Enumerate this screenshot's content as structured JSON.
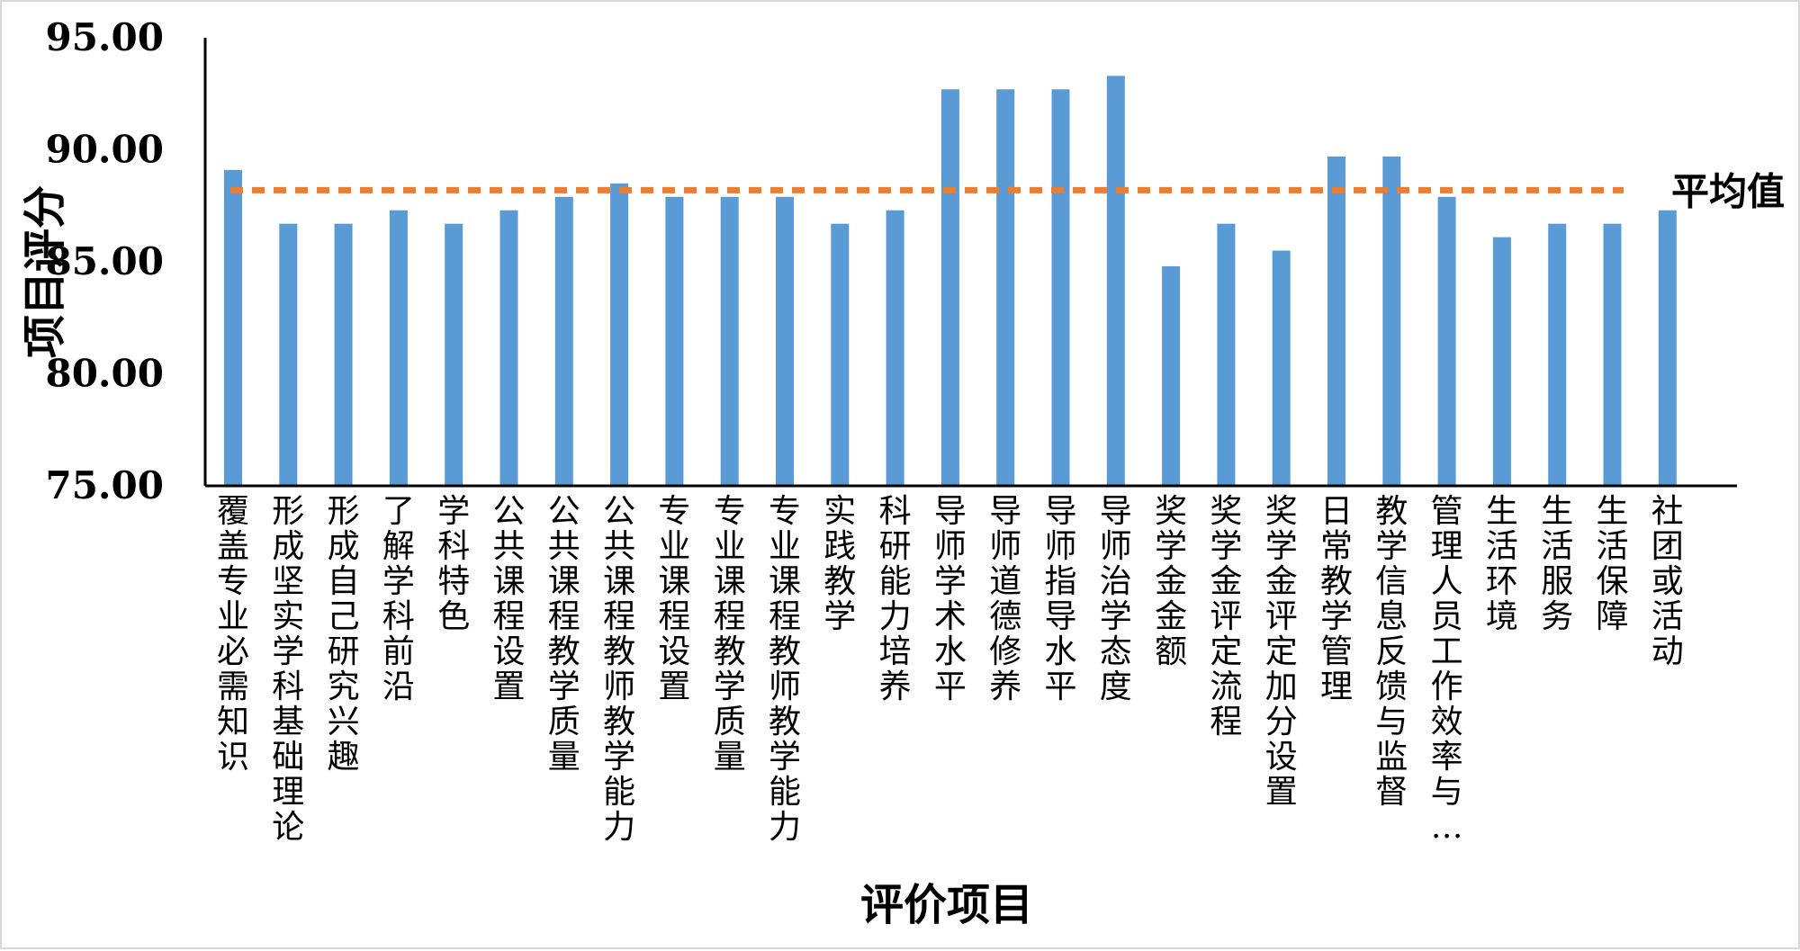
{
  "chart_data": {
    "type": "bar",
    "title": "",
    "xlabel": "评价项目",
    "ylabel": "项目评分",
    "ylim": [
      75,
      95
    ],
    "yticks": [
      "75.00",
      "80.00",
      "85.00",
      "90.00",
      "95.00"
    ],
    "grid": false,
    "categories": [
      "覆盖专业必需知识",
      "形成坚实学科基础理论",
      "形成自己研究兴趣",
      "了解学科前沿",
      "学科特色",
      "公共课程设置",
      "公共课程教学质量",
      "公共课程教师教学能力",
      "专业课程设置",
      "专业课程教学质量",
      "专业课程教师教学能力",
      "实践教学",
      "科研能力培养",
      "导师学术水平",
      "导师道德修养",
      "导师指导水平",
      "导师治学态度",
      "奖学金金额",
      "奖学金评定流程",
      "奖学金评定加分设置",
      "日常教学管理",
      "教学信息反馈与监督",
      "管理人员工作效率与…",
      "生活环境",
      "生活服务",
      "生活保障",
      "社团或活动"
    ],
    "series": [
      {
        "values": [
          89.1,
          86.7,
          86.7,
          87.3,
          86.7,
          87.3,
          87.9,
          88.5,
          87.9,
          87.9,
          87.9,
          86.7,
          87.3,
          92.7,
          92.7,
          92.7,
          93.3,
          84.8,
          86.7,
          85.5,
          89.7,
          89.7,
          87.9,
          86.1,
          86.7,
          86.7,
          87.3
        ],
        "color": "#5b9bd5"
      }
    ],
    "reference_line": {
      "label": "平均值",
      "value": 88.2,
      "color": "#ed7d31",
      "style": "dashed"
    }
  }
}
